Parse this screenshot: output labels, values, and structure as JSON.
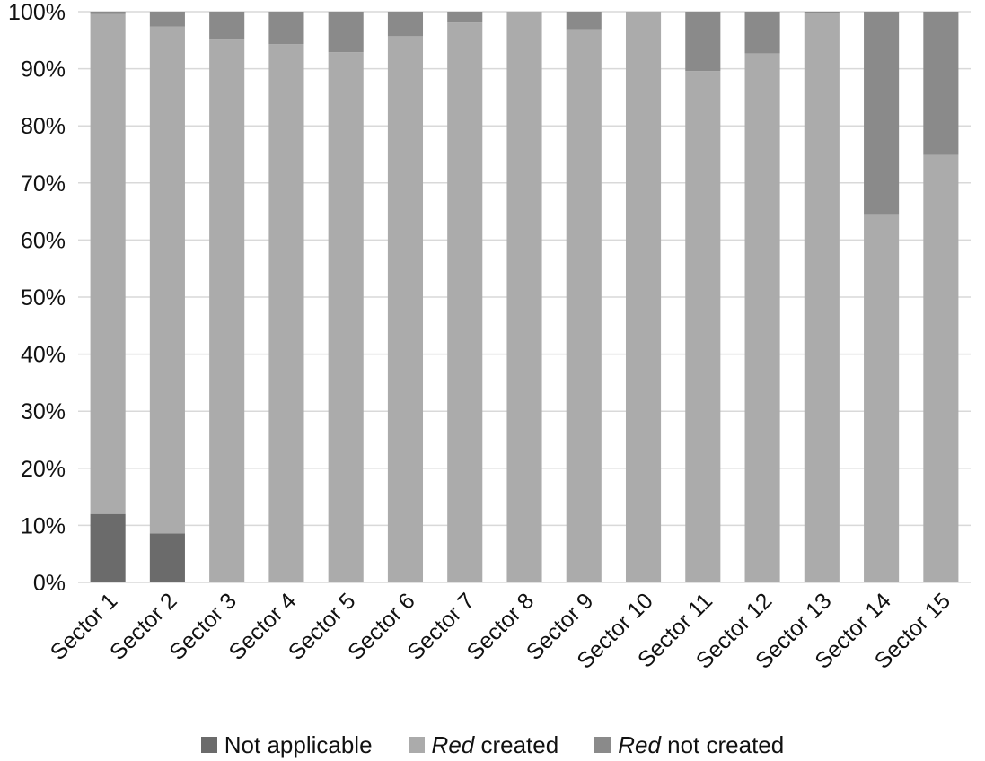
{
  "chart_data": {
    "type": "bar",
    "stacked": true,
    "title": "",
    "xlabel": "",
    "ylabel": "",
    "ylim": [
      0,
      100
    ],
    "y_tick_labels": [
      "0%",
      "10%",
      "20%",
      "30%",
      "40%",
      "50%",
      "60%",
      "70%",
      "80%",
      "90%",
      "100%"
    ],
    "grid": true,
    "legend_position": "bottom",
    "categories": [
      "Sector 1",
      "Sector 2",
      "Sector 3",
      "Sector 4",
      "Sector 5",
      "Sector 6",
      "Sector 7",
      "Sector 8",
      "Sector 9",
      "Sector 10",
      "Sector 11",
      "Sector 12",
      "Sector 13",
      "Sector 14",
      "Sector 15"
    ],
    "series": [
      {
        "name": "Not applicable",
        "legend_parts": [
          {
            "text": "Not applicable",
            "italic": false
          }
        ],
        "color": "#6b6b6b",
        "values": [
          12,
          8.6,
          0,
          0,
          0,
          0,
          0,
          0,
          0,
          0,
          0,
          0,
          0,
          0,
          0
        ]
      },
      {
        "name": "Red created",
        "legend_parts": [
          {
            "text": "Red",
            "italic": true
          },
          {
            "text": " created",
            "italic": false
          }
        ],
        "color": "#ababab",
        "values": [
          87.6,
          88.8,
          95.1,
          94.3,
          92.9,
          95.7,
          98.1,
          100,
          96.9,
          100,
          89.6,
          92.7,
          99.7,
          64.4,
          74.9
        ]
      },
      {
        "name": "Red not created",
        "legend_parts": [
          {
            "text": "Red",
            "italic": true
          },
          {
            "text": " not created",
            "italic": false
          }
        ],
        "color": "#8a8a8a",
        "values": [
          0.4,
          2.6,
          4.9,
          5.7,
          7.1,
          4.3,
          1.9,
          0,
          3.1,
          0,
          10.4,
          7.3,
          0.3,
          35.6,
          25.1
        ]
      }
    ]
  }
}
